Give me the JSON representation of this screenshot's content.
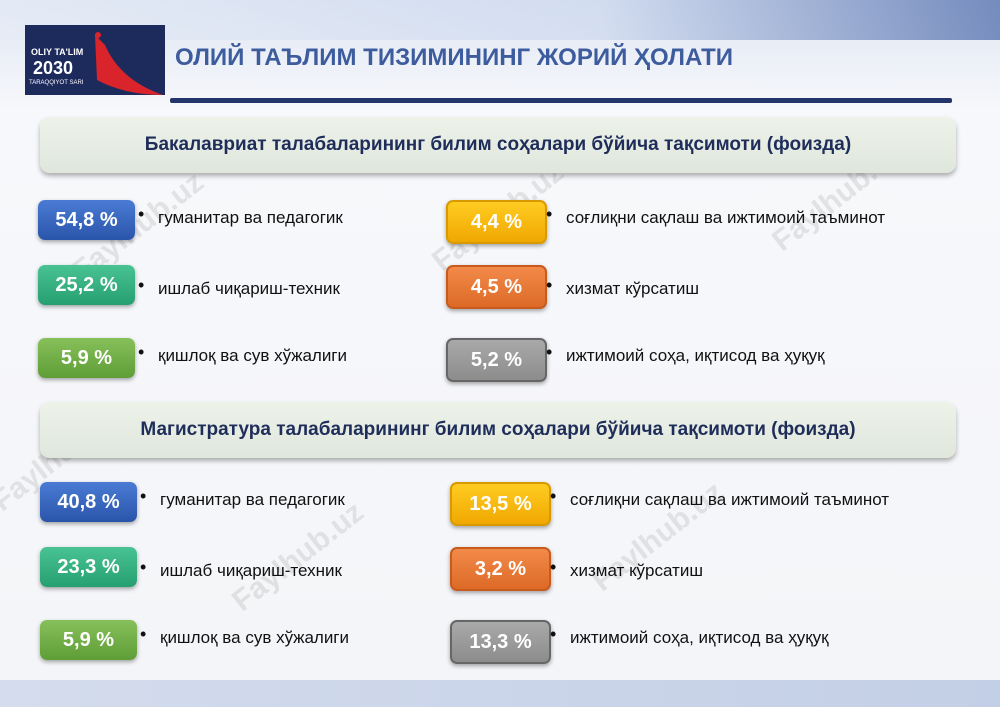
{
  "header": {
    "logo": {
      "line1": "OLIY TA'LIM",
      "line2": "2030",
      "line3": "TARAQQIYOT SARI"
    },
    "title": "ОЛИЙ ТАЪЛИМ ТИЗИМИНИНГ ЖОРИЙ ҲОЛАТИ"
  },
  "watermark": "Faylhub.uz",
  "sections": [
    {
      "title": "Бакалавриат талабаларининг билим соҳалари бўйича  тақсимоти (фоизда)",
      "items": [
        {
          "value": "54,8 %",
          "label": "гуманитар ва педагогик"
        },
        {
          "value": "25,2 %",
          "label": "ишлаб чиқариш-техник"
        },
        {
          "value": "5,9 %",
          "label": "қишлоқ ва сув хўжалиги"
        },
        {
          "value": "4,4 %",
          "label": "соғлиқни сақлаш ва ижтимоий таъминот"
        },
        {
          "value": "4,5 %",
          "label": "хизмат кўрсатиш"
        },
        {
          "value": "5,2 %",
          "label": "ижтимоий соҳа, иқтисод ва ҳуқуқ"
        }
      ]
    },
    {
      "title": "Магистратура талабаларининг билим соҳалари бўйича  тақсимоти (фоизда)",
      "items": [
        {
          "value": "40,8 %",
          "label": "гуманитар ва педагогик"
        },
        {
          "value": "23,3 %",
          "label": "ишлаб чиқариш-техник"
        },
        {
          "value": "5,9 %",
          "label": "қишлоқ ва сув хўжалиги"
        },
        {
          "value": "13,5 %",
          "label": "соғлиқни сақлаш ва ижтимоий таъминот"
        },
        {
          "value": "3,2 %",
          "label": "хизмат кўрсатиш"
        },
        {
          "value": "13,3 %",
          "label": "ижтимоий соҳа, иқтисод ва ҳуқуқ"
        }
      ]
    }
  ]
}
